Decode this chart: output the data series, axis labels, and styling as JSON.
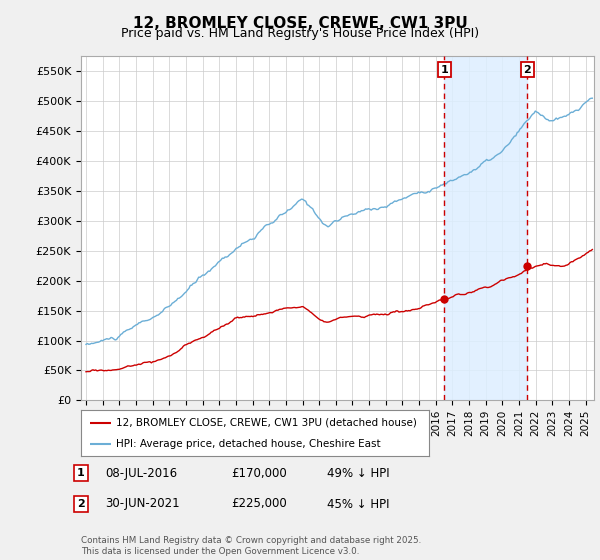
{
  "title": "12, BROMLEY CLOSE, CREWE, CW1 3PU",
  "subtitle": "Price paid vs. HM Land Registry's House Price Index (HPI)",
  "hpi_color": "#6baed6",
  "price_color": "#cc0000",
  "vline_color": "#cc0000",
  "shade_color": "#ddeeff",
  "bg_color": "#f0f0f0",
  "plot_bg": "#ffffff",
  "grid_color": "#cccccc",
  "ylim": [
    0,
    575000
  ],
  "yticks": [
    0,
    50000,
    100000,
    150000,
    200000,
    250000,
    300000,
    350000,
    400000,
    450000,
    500000,
    550000
  ],
  "ytick_labels": [
    "£0",
    "£50K",
    "£100K",
    "£150K",
    "£200K",
    "£250K",
    "£300K",
    "£350K",
    "£400K",
    "£450K",
    "£500K",
    "£550K"
  ],
  "xlim_start": 1994.7,
  "xlim_end": 2025.5,
  "sale1_year": 2016.52,
  "sale1_label": "1",
  "sale1_price": 170000,
  "sale1_date": "08-JUL-2016",
  "sale1_hpi_pct": "49% ↓ HPI",
  "sale2_year": 2021.5,
  "sale2_label": "2",
  "sale2_price": 225000,
  "sale2_date": "30-JUN-2021",
  "sale2_hpi_pct": "45% ↓ HPI",
  "legend_line1": "12, BROMLEY CLOSE, CREWE, CW1 3PU (detached house)",
  "legend_line2": "HPI: Average price, detached house, Cheshire East",
  "footer": "Contains HM Land Registry data © Crown copyright and database right 2025.\nThis data is licensed under the Open Government Licence v3.0."
}
